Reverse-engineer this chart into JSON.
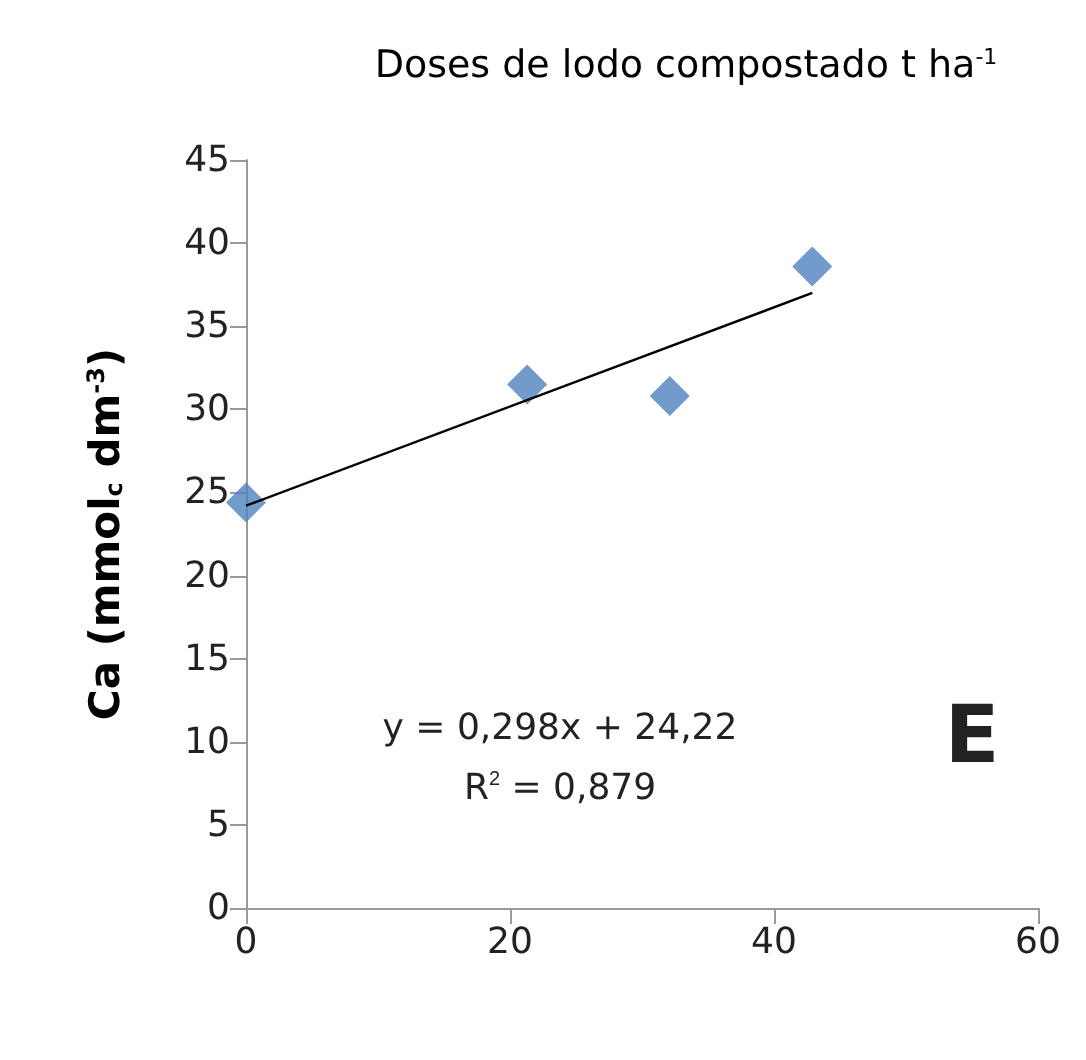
{
  "chart_data": {
    "type": "scatter",
    "title": "Doses de lodo compostado t ha$^{-1}$",
    "ylabel": "Ca (mmol$_{c}$ dm$^{-3}$)",
    "series": [
      {
        "color": "#4f81bd",
        "marker": "diamond",
        "x": [
          0,
          21.3,
          32.1,
          42.9
        ],
        "values": [
          24.4,
          31.5,
          30.8,
          38.6
        ]
      },
      {
        "type": "line",
        "color": "#000000",
        "marker": "none",
        "x": [
          0,
          42.9
        ],
        "values": [
          24.2,
          37.0
        ]
      }
    ],
    "xlim": [
      0,
      60
    ],
    "xticks": [
      0,
      20,
      40,
      60
    ],
    "ylim": [
      0,
      45
    ],
    "yticks": [
      0,
      5,
      10,
      15,
      20,
      25,
      30,
      35,
      40,
      45
    ],
    "grid": false,
    "annotations": [
      "y = 0,298x + 24,22",
      "R$^{2}$ = 0,879",
      "E"
    ]
  }
}
